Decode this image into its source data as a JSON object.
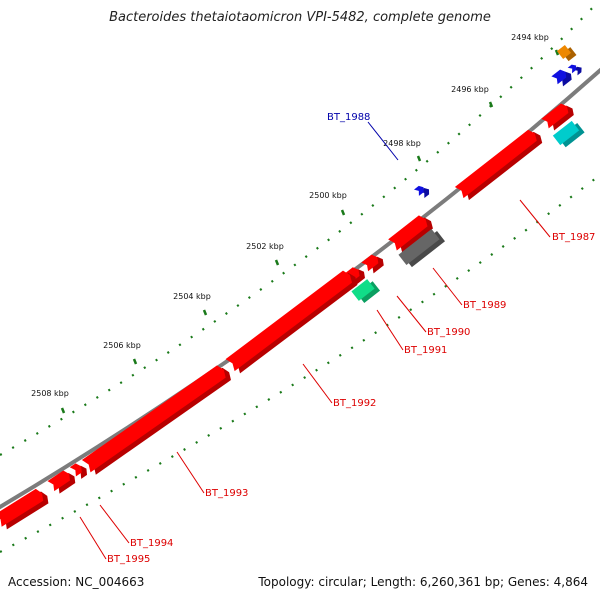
{
  "title": "Bacteroides thetaiotaomicron VPI-5482, complete genome",
  "footer": {
    "accession": "Accession: NC_004663",
    "stats": "Topology: circular; Length: 6,260,361 bp; Genes: 4,864"
  },
  "colors": {
    "backbone": "#8a8a8a",
    "tick": "#1a7a1a",
    "red": "#ff0000",
    "blue": "#1010e0",
    "orange": "#ee8800",
    "cyan": "#00cccc",
    "teal": "#10dd88",
    "gray": "#666666",
    "red_label": "#dd0000",
    "blue_label": "#0000aa"
  },
  "ticks": [
    {
      "label": "2494 kbp"
    },
    {
      "label": "2496 kbp"
    },
    {
      "label": "2498 kbp"
    },
    {
      "label": "2500 kbp"
    },
    {
      "label": "2502 kbp"
    },
    {
      "label": "2504 kbp"
    },
    {
      "label": "2506 kbp"
    },
    {
      "label": "2508 kbp"
    }
  ],
  "gene_labels": [
    {
      "name": "BT_1987",
      "color": "red"
    },
    {
      "name": "BT_1988",
      "color": "blue"
    },
    {
      "name": "BT_1989",
      "color": "red"
    },
    {
      "name": "BT_1990",
      "color": "red"
    },
    {
      "name": "BT_1991",
      "color": "red"
    },
    {
      "name": "BT_1992",
      "color": "red"
    },
    {
      "name": "BT_1993",
      "color": "red"
    },
    {
      "name": "BT_1994",
      "color": "red"
    },
    {
      "name": "BT_1995",
      "color": "red"
    }
  ]
}
